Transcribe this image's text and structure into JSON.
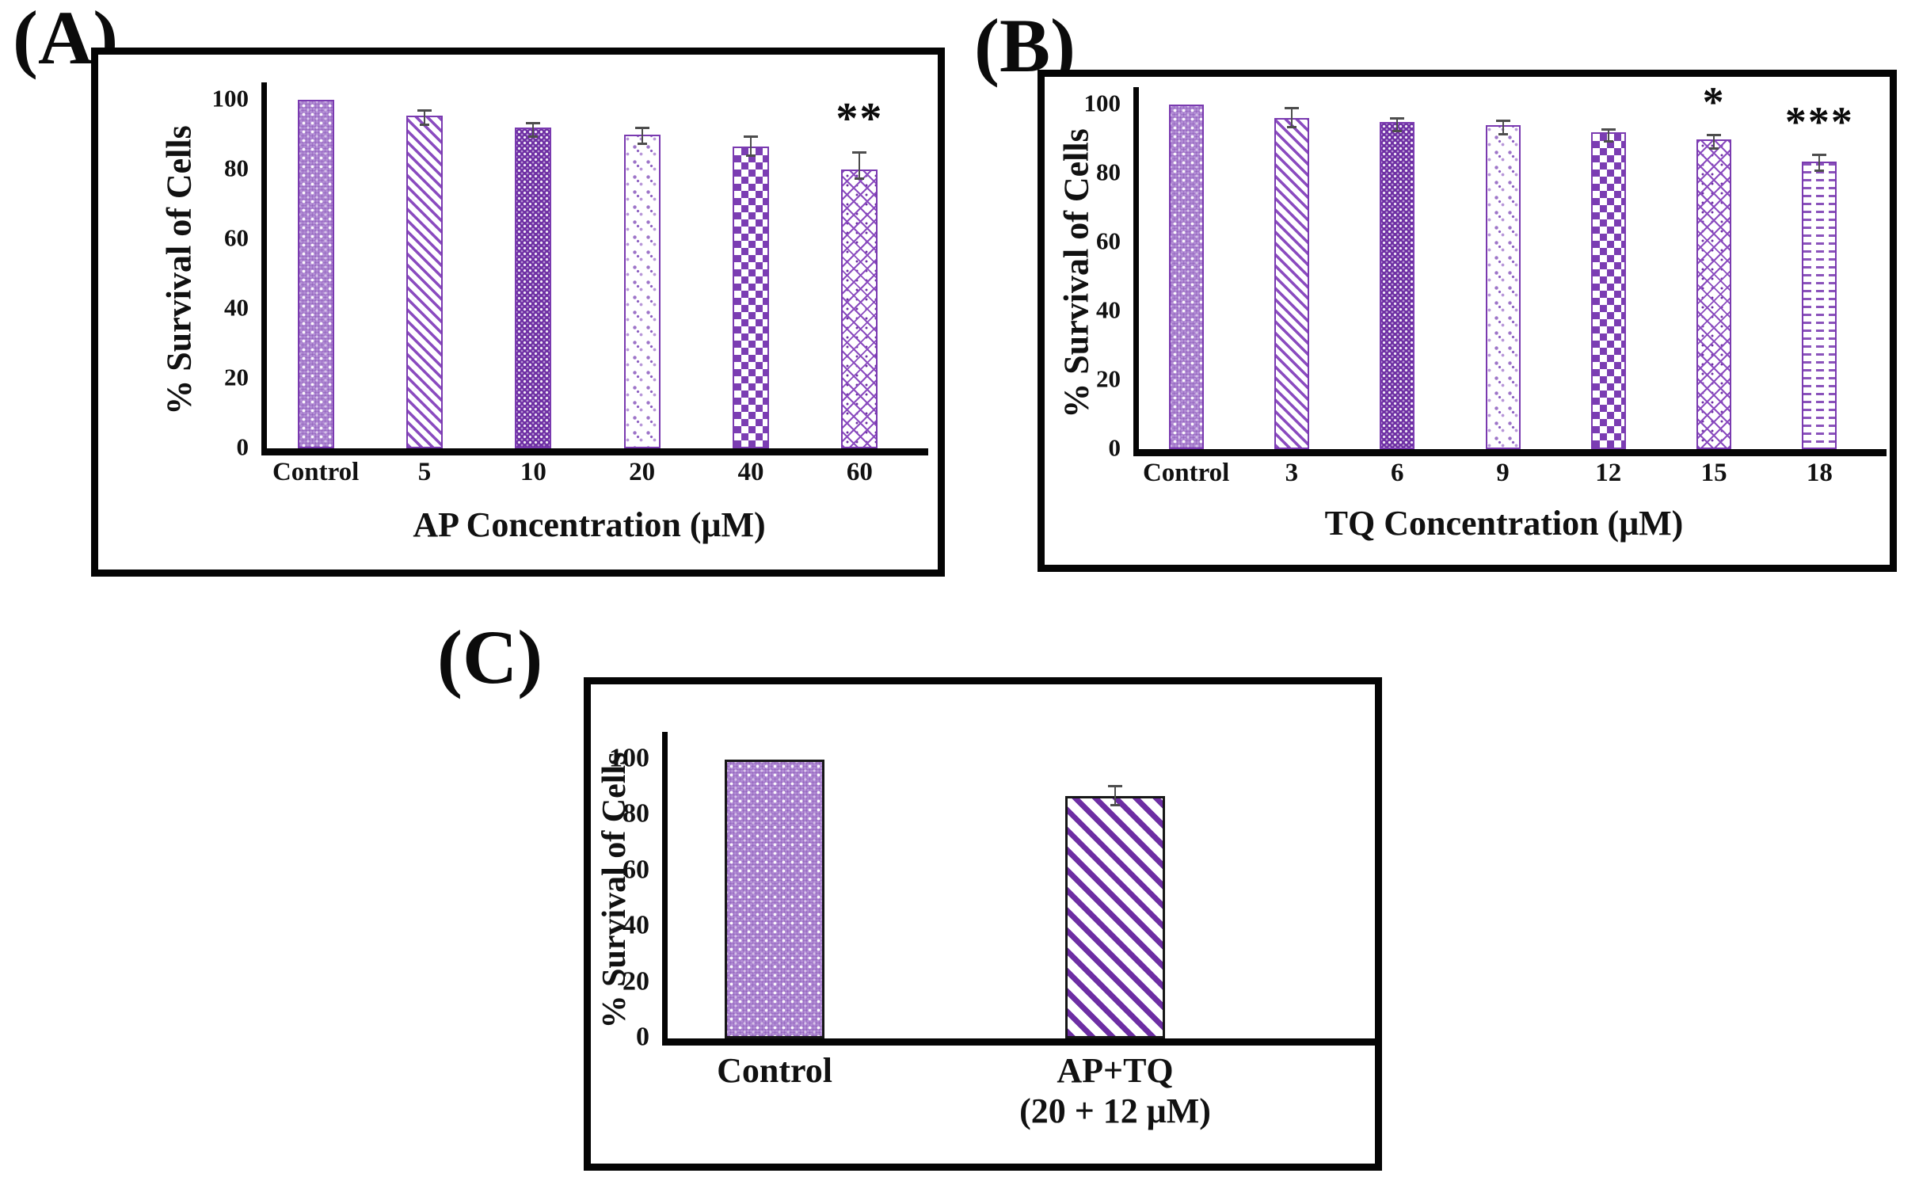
{
  "figure": {
    "background": "#ffffff"
  },
  "colors": {
    "purple_dark": "#6d2ea3",
    "purple_mid": "#8a4bbf",
    "purple_light": "#b18cd4",
    "bar_border": "#7a3ab0",
    "error_bar": "#4d4d4d",
    "frame": "#050505"
  },
  "chart_data": [
    {
      "type": "bar",
      "panel_label": "(A)",
      "ylabel": "% Survival of Cells",
      "xlabel": "AP Concentration (μM)",
      "ylim": [
        0,
        100
      ],
      "yticks": [
        100,
        80,
        60,
        40,
        20,
        0
      ],
      "grid": "off",
      "legend": "none",
      "categories": [
        "Control",
        "5",
        "10",
        "20",
        "40",
        "60"
      ],
      "values": [
        100,
        95.5,
        92,
        90,
        86.5,
        80
      ],
      "errors": [
        0,
        1.5,
        1.5,
        2,
        3,
        5
      ],
      "significance": [
        "",
        "",
        "",
        "",
        "",
        "**"
      ],
      "patterns": [
        "dot-grid",
        "diag-stripe",
        "dark-dot",
        "sparse-motif",
        "checker",
        "trellis"
      ]
    },
    {
      "type": "bar",
      "panel_label": "(B)",
      "ylabel": "% Survival of Cells",
      "xlabel": "TQ Concentration (μM)",
      "ylim": [
        0,
        100
      ],
      "yticks": [
        100,
        80,
        60,
        40,
        20,
        0
      ],
      "grid": "off",
      "legend": "none",
      "categories": [
        "Control",
        "3",
        "6",
        "9",
        "12",
        "15",
        "18"
      ],
      "values": [
        100,
        96,
        95,
        94,
        92,
        90,
        83.5
      ],
      "errors": [
        0,
        3,
        1,
        1.5,
        0.8,
        1.2,
        2
      ],
      "significance": [
        "",
        "",
        "",
        "",
        "",
        "*",
        "***"
      ],
      "patterns": [
        "dot-grid",
        "diag-stripe",
        "dark-dot",
        "sparse-motif",
        "checker",
        "trellis",
        "dash-rows"
      ]
    },
    {
      "type": "bar",
      "panel_label": "(C)",
      "ylabel": "% Survival of Cells",
      "xlabel": "",
      "ylim": [
        0,
        100
      ],
      "yticks": [
        100,
        80,
        60,
        40,
        20,
        0
      ],
      "grid": "off",
      "legend": "none",
      "categories": [
        "Control",
        "AP+TQ"
      ],
      "sublabels": [
        "",
        "(20 + 12 μM)"
      ],
      "values": [
        100,
        87
      ],
      "errors": [
        0,
        3.5
      ],
      "significance": [
        "",
        ""
      ],
      "patterns": [
        "dot-grid",
        "bold-diag"
      ]
    }
  ]
}
